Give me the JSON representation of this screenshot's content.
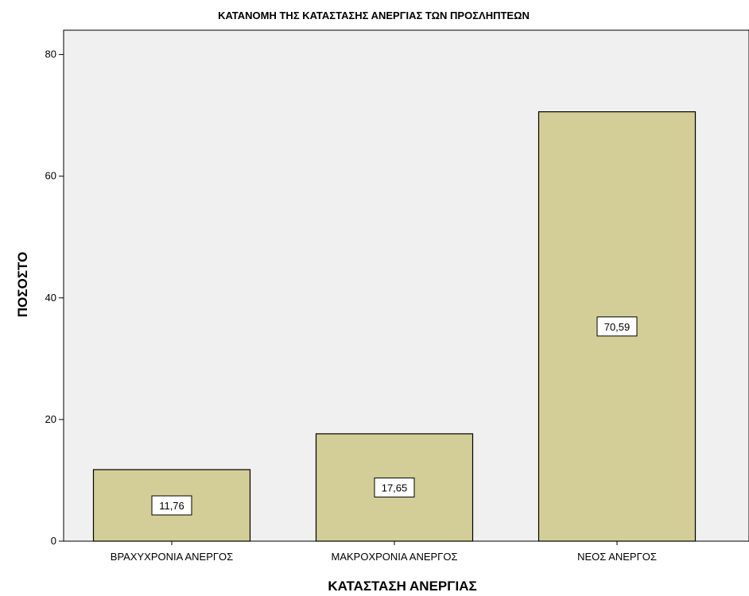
{
  "chart_data": {
    "type": "bar",
    "title": "ΚΑΤΑΝΟΜΗ ΤΗΣ ΚΑΤΑΣΤΑΣΗΣ ΑΝΕΡΓΙΑΣ ΤΩΝ ΠΡΟΣΛΗΠΤΕΩΝ",
    "xlabel": "ΚΑΤΑΣΤΑΣΗ ΑΝΕΡΓΙΑΣ",
    "ylabel": "ΠΟΣΟΣΤΟ",
    "categories": [
      "ΒΡΑΧΥΧΡΟΝΙΑ ΑΝΕΡΓΟΣ",
      "ΜΑΚΡΟΧΡΟΝΙΑ ΑΝΕΡΓΟΣ",
      "ΝΕΟΣ ΑΝΕΡΓΟΣ"
    ],
    "values": [
      11.76,
      17.65,
      70.59
    ],
    "data_labels": [
      "11,76",
      "17,65",
      "70,59"
    ],
    "ylim": [
      0,
      84
    ],
    "yticks": [
      0,
      20,
      40,
      60,
      80
    ],
    "grid": false,
    "legend": "none",
    "colors": {
      "plot_background": "#f0f0f0",
      "bar_fill": "#d3ce97",
      "bar_stroke": "#000000"
    }
  }
}
